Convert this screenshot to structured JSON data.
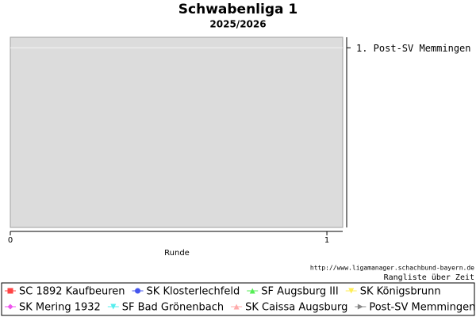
{
  "chart_data": {
    "type": "line",
    "title": "Schwabenliga 1",
    "subtitle": "2025/2026",
    "x_label": "Runde",
    "xlim": [
      0,
      1.05
    ],
    "xticks": [
      0,
      1
    ],
    "ylim": [
      9.5,
      0.5
    ],
    "yticks": [
      {
        "value": 1,
        "label": "1. Post-SV Memmingen"
      }
    ],
    "grid": true,
    "source": "http://www.ligamanager.schachbund-bayern.de",
    "caption": "Rangliste über Zeit",
    "series": [
      {
        "name": "SC 1892 Kaufbeuren",
        "color": "#ff4444",
        "marker": "square",
        "values": []
      },
      {
        "name": "SK Klosterlechfeld",
        "color": "#4455ee",
        "marker": "circle",
        "values": []
      },
      {
        "name": "SF Augsburg III",
        "color": "#55ee55",
        "marker": "triangle-up",
        "values": []
      },
      {
        "name": "SK Königsbrunn",
        "color": "#ffee55",
        "marker": "triangle-down",
        "values": []
      },
      {
        "name": "SK Mering 1932",
        "color": "#ee55ee",
        "marker": "diamond",
        "values": []
      },
      {
        "name": "SF Bad Grönenbach",
        "color": "#55eeee",
        "marker": "triangle-down",
        "values": []
      },
      {
        "name": "SK Caissa Augsburg",
        "color": "#ffaaaa",
        "marker": "triangle-up",
        "values": []
      },
      {
        "name": "Post-SV Memmingen",
        "color": "#888888",
        "marker": "triangle-right",
        "values": []
      }
    ]
  }
}
